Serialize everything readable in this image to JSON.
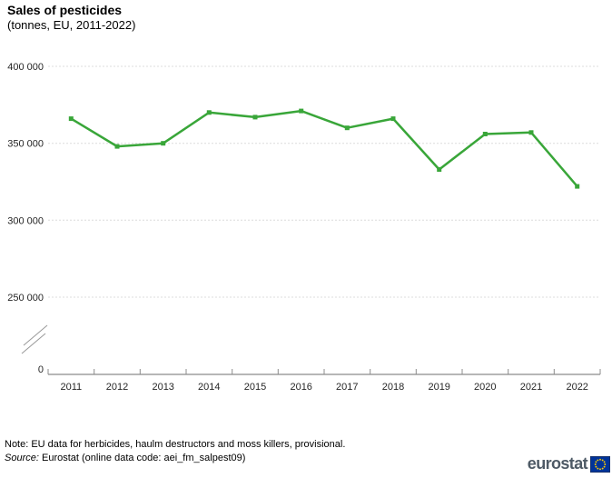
{
  "chart_data": {
    "type": "line",
    "title": "Sales of pesticides",
    "subtitle": "(tonnes, EU, 2011-2022)",
    "categories": [
      "2011",
      "2012",
      "2013",
      "2014",
      "2015",
      "2016",
      "2017",
      "2018",
      "2019",
      "2020",
      "2021",
      "2022"
    ],
    "series": [
      {
        "name": "EU",
        "values": [
          366000,
          348000,
          350000,
          370000,
          367000,
          371000,
          360000,
          366000,
          333000,
          356000,
          357000,
          322000
        ]
      }
    ],
    "xlabel": "",
    "ylabel": "",
    "ylim": [
      0,
      400000
    ],
    "y_axis_break": true,
    "y_ticks": [
      0,
      250000,
      300000,
      350000,
      400000
    ],
    "y_tick_labels": [
      "0",
      "250 000",
      "300 000",
      "350 000",
      "400 000"
    ],
    "grid": "horizontal-dashed",
    "legend": "none",
    "colors": {
      "line": "#39a639",
      "marker": "#39a639",
      "grid": "#dcdcdc",
      "axis": "#8c8c8c",
      "axis_break": "#999999",
      "text": "#262626"
    }
  },
  "notes": {
    "note": "Note: EU data for herbicides, haulm destructors and moss killers, provisional.",
    "source_label": "Source:",
    "source_text": "Eurostat (online data code: aei_fm_salpest09)"
  },
  "logo": {
    "text": "eurostat",
    "colors": {
      "wordmark": "#4e5a66",
      "flag_bg": "#003399",
      "flag_border": "#16316b",
      "stars": "#ffcc00"
    }
  }
}
